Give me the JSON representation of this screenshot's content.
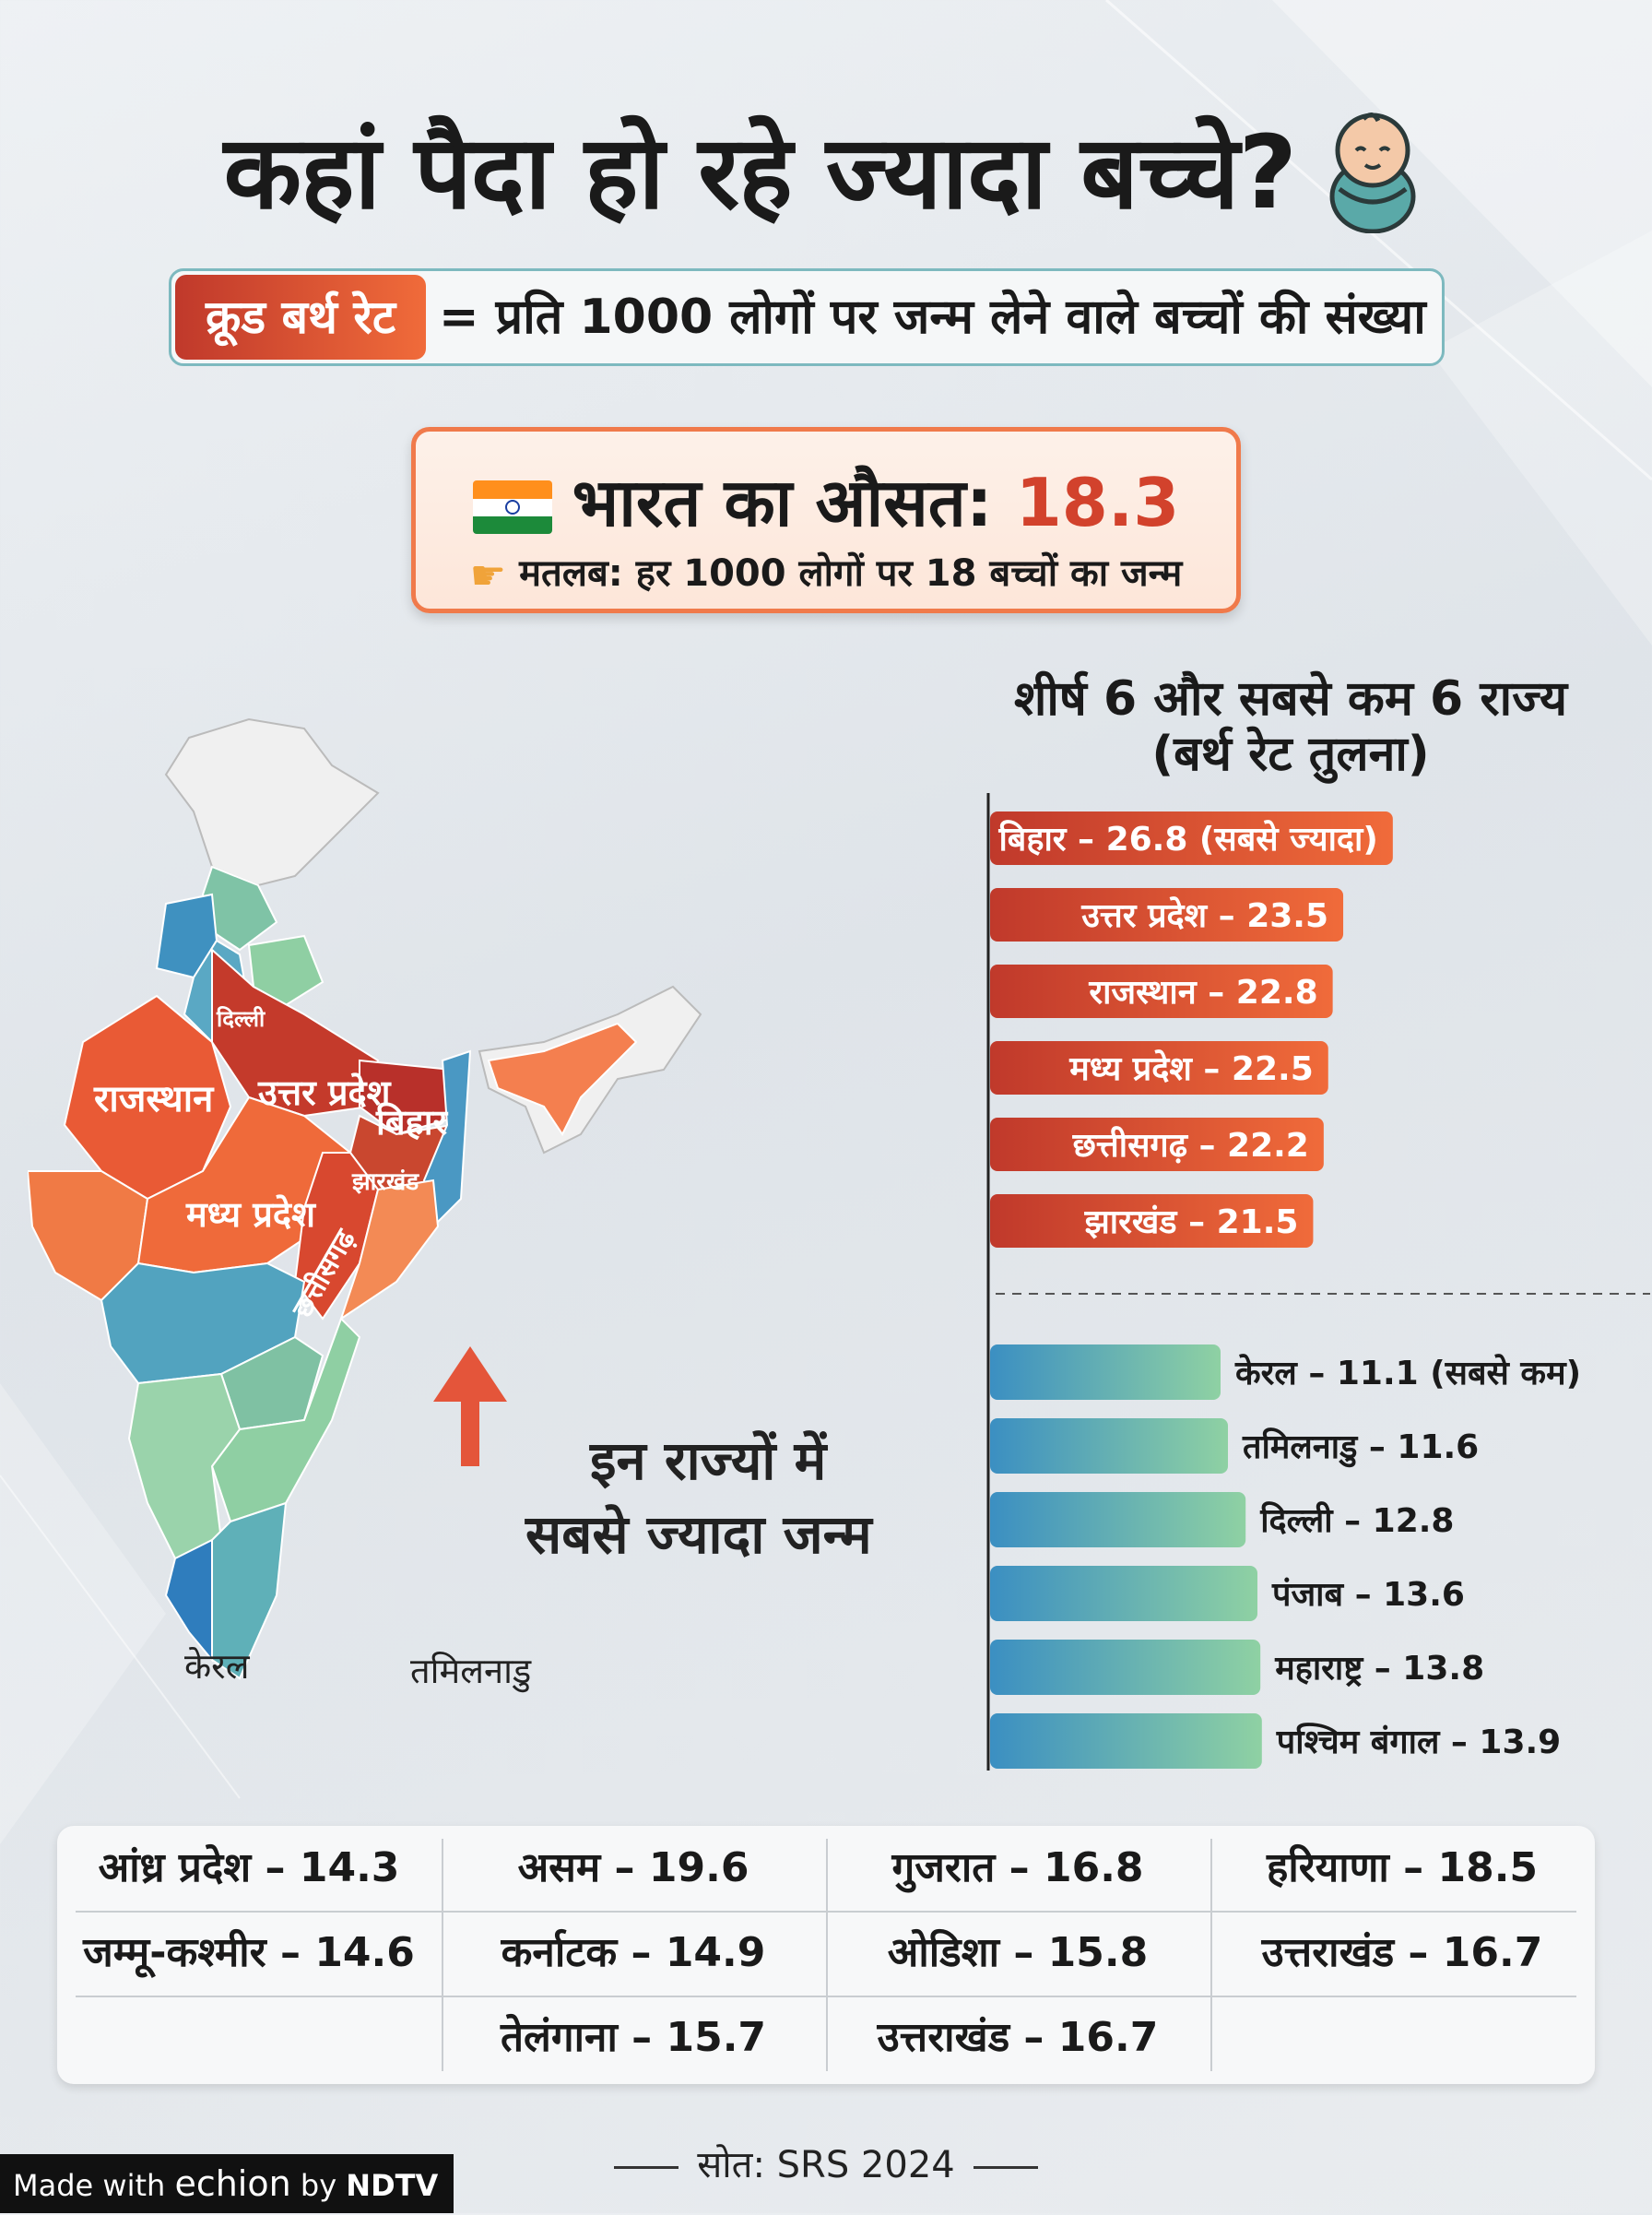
{
  "title": "कहां पैदा हो रहे ज्यादा बच्चे?",
  "definition": {
    "term": "क्रूड बर्थ रेट",
    "text": "= प्रति 1000 लोगों पर जन्म लेने वाले बच्चों की संख्या"
  },
  "average": {
    "label": "भारत का औसत:",
    "value": "18.3",
    "meaning": "मतलब: हर 1000 लोगों पर 18 बच्चों का जन्म"
  },
  "map": {
    "labels": {
      "delhi": "दिल्ली",
      "rajasthan": "राजस्थान",
      "up": "उत्तर प्रदेश",
      "bihar": "बिहार",
      "jharkhand": "झारखंड",
      "mp": "मध्य प्रदेश",
      "chhattisgarh": "छत्तीसगढ़",
      "kerala": "केरल",
      "tamilnadu": "तमिलनाडु"
    },
    "callout_line1": "इन राज्यों में",
    "callout_line2": "सबसे ज्यादा जन्म",
    "colors": {
      "high": "#c43a2b",
      "mid": "#f07a45",
      "low_green": "#8fcfa3",
      "low_blue": "#3b8fc2",
      "none": "#f0f0f0"
    }
  },
  "chart_data": {
    "type": "bar",
    "title": "शीर्ष 6 और सबसे कम 6 राज्य",
    "subtitle": "(बर्थ रेट तुलना)",
    "series": [
      {
        "categories": [
          "बिहार",
          "उत्तर प्रदेश",
          "राजस्थान",
          "मध्य प्रदेश",
          "छत्तीसगढ़",
          "झारखंड"
        ],
        "values": [
          26.8,
          23.5,
          22.8,
          22.5,
          22.2,
          21.5
        ],
        "labels": [
          "बिहार – 26.8 (सबसे ज्यादा)",
          "उत्तर प्रदेश – 23.5",
          "राजस्थान – 22.8",
          "मध्य प्रदेश – 22.5",
          "छत्तीसगढ़ – 22.2",
          "झारखंड – 21.5"
        ],
        "color": "#d2422c"
      },
      {
        "categories": [
          "केरल",
          "तमिलनाडु",
          "दिल्ली",
          "पंजाब",
          "महाराष्ट्र",
          "पश्चिम बंगाल"
        ],
        "values": [
          11.1,
          11.6,
          12.8,
          13.6,
          13.8,
          13.9
        ],
        "labels": [
          "केरल – 11.1 (सबसे कम)",
          "तमिलनाडु – 11.6",
          "दिल्ली – 12.8",
          "पंजाब – 13.6",
          "महाराष्ट्र – 13.8",
          "पश्चिम बंगाल – 13.9"
        ],
        "color": "#3b8fc2"
      }
    ]
  },
  "table": {
    "rows": [
      [
        "आंध्र प्रदेश – 14.3",
        "असम – 19.6",
        "गुजरात – 16.8",
        "हरियाणा – 18.5"
      ],
      [
        "जम्मू-कश्मीर – 14.6",
        "कर्नाटक – 14.9",
        "ओडिशा – 15.8",
        "उत्तराखंड – 16.7"
      ],
      [
        "",
        "तेलंगाना – 15.7",
        "उत्तराखंड – 16.7",
        ""
      ]
    ]
  },
  "source": "सोत: SRS 2024",
  "brand": {
    "made_with": "Made with",
    "echion": "echion",
    "by": "by",
    "ndtv": "NDTV"
  }
}
